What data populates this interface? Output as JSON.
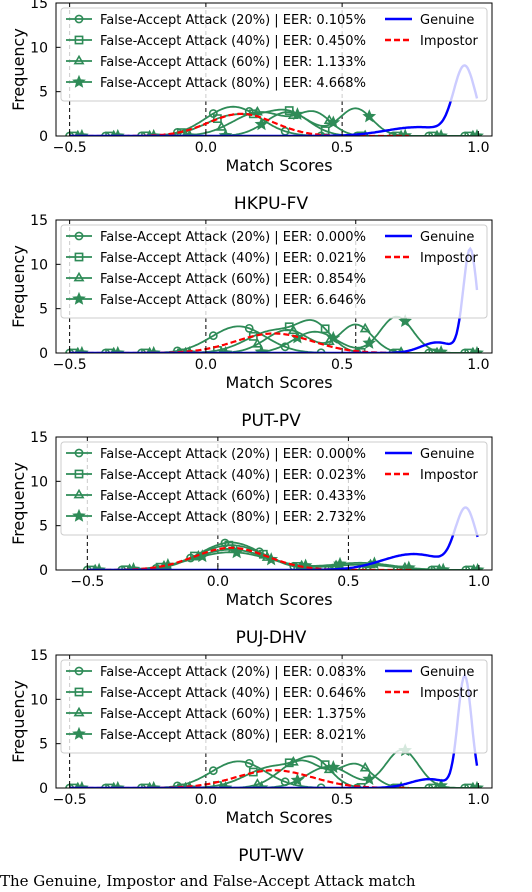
{
  "caption": "The Genuine, Impostor and False-Accept Attack match",
  "colors": {
    "attack": "#2e8b57",
    "genuine": "#0000ff",
    "impostor": "#ff0000"
  },
  "legend_labels": {
    "genuine": "Genuine",
    "impostor": "Impostor"
  },
  "chart_data": [
    {
      "type": "line",
      "title": "HKPU-FV",
      "xlabel": "Match Scores",
      "ylabel": "Frequency",
      "xlim": [
        -0.55,
        1.05
      ],
      "ylim": [
        0,
        15
      ],
      "xticks": [
        "-0.5",
        "0.0",
        "0.5",
        "1.0"
      ],
      "yticks": [
        "0",
        "5",
        "10",
        "15"
      ],
      "attack_series": [
        {
          "name": "False-Accept Attack (20%) | EER: 0.105%",
          "marker": "circle",
          "peaks": [
            [
              0.1,
              3.3,
              0.1
            ]
          ]
        },
        {
          "name": "False-Accept Attack (40%) | EER: 0.450%",
          "marker": "square",
          "peaks": [
            [
              0.1,
              2.3,
              0.1
            ],
            [
              0.3,
              2.6,
              0.08
            ]
          ]
        },
        {
          "name": "False-Accept Attack (60%) | EER: 1.133%",
          "marker": "triangle",
          "peaks": [
            [
              0.2,
              2.7,
              0.1
            ],
            [
              0.4,
              2.4,
              0.06
            ]
          ]
        },
        {
          "name": "False-Accept Attack (80%) | EER: 4.668%",
          "marker": "star",
          "peaks": [
            [
              0.3,
              2.7,
              0.08
            ],
            [
              0.55,
              3.1,
              0.06
            ]
          ]
        }
      ],
      "genuine": {
        "peaks": [
          [
            0.95,
            7.6,
            0.04
          ],
          [
            0.78,
            1.0,
            0.12
          ]
        ],
        "cut": 1.0
      },
      "impostor": {
        "peaks": [
          [
            0.13,
            2.5,
            0.12
          ]
        ]
      },
      "vlines": [
        -0.5,
        0.0,
        0.5
      ]
    },
    {
      "type": "line",
      "title": "PUT-PV",
      "xlabel": "Match Scores",
      "ylabel": "Frequency",
      "xlim": [
        -0.55,
        1.05
      ],
      "ylim": [
        0,
        15
      ],
      "xticks": [
        "-0.5",
        "0.0",
        "0.5",
        "1.0"
      ],
      "yticks": [
        "0",
        "5",
        "10",
        "15"
      ],
      "attack_series": [
        {
          "name": "False-Accept Attack (20%) | EER: 0.000%",
          "marker": "circle",
          "peaks": [
            [
              0.12,
              3.0,
              0.1
            ]
          ]
        },
        {
          "name": "False-Accept Attack (40%) | EER: 0.021%",
          "marker": "square",
          "peaks": [
            [
              0.25,
              2.5,
              0.1
            ],
            [
              0.4,
              2.8,
              0.06
            ]
          ]
        },
        {
          "name": "False-Accept Attack (60%) | EER: 0.854%",
          "marker": "triangle",
          "peaks": [
            [
              0.3,
              2.6,
              0.08
            ],
            [
              0.55,
              3.2,
              0.06
            ]
          ]
        },
        {
          "name": "False-Accept Attack (80%) | EER: 6.646%",
          "marker": "star",
          "peaks": [
            [
              0.4,
              2.4,
              0.08
            ],
            [
              0.7,
              4.1,
              0.06
            ]
          ]
        }
      ],
      "genuine": {
        "peaks": [
          [
            0.97,
            11.6,
            0.025
          ],
          [
            0.85,
            1.2,
            0.06
          ]
        ],
        "cut": 1.0
      },
      "impostor": {
        "peaks": [
          [
            0.25,
            2.2,
            0.14
          ]
        ]
      },
      "vlines": [
        -0.5,
        0.0,
        0.55
      ]
    },
    {
      "type": "line",
      "title": "PUJ-DHV",
      "xlabel": "Match Scores",
      "ylabel": "Frequency",
      "xlim": [
        -0.62,
        1.05
      ],
      "ylim": [
        0,
        15
      ],
      "xticks": [
        "-0.5",
        "0.0",
        "0.5",
        "1.0"
      ],
      "yticks": [
        "0",
        "5",
        "10",
        "15"
      ],
      "attack_series": [
        {
          "name": "False-Accept Attack (20%) | EER: 0.000%",
          "marker": "circle",
          "peaks": [
            [
              0.05,
              3.1,
              0.12
            ]
          ]
        },
        {
          "name": "False-Accept Attack (40%) | EER: 0.023%",
          "marker": "square",
          "peaks": [
            [
              0.05,
              2.8,
              0.13
            ]
          ]
        },
        {
          "name": "False-Accept Attack (60%) | EER: 0.433%",
          "marker": "triangle",
          "peaks": [
            [
              0.05,
              2.3,
              0.14
            ],
            [
              0.55,
              0.6,
              0.12
            ]
          ]
        },
        {
          "name": "False-Accept Attack (80%) | EER: 2.732%",
          "marker": "star",
          "peaks": [
            [
              0.05,
              2.0,
              0.15
            ],
            [
              0.55,
              0.8,
              0.12
            ]
          ]
        }
      ],
      "genuine": {
        "peaks": [
          [
            0.95,
            6.6,
            0.04
          ],
          [
            0.75,
            1.8,
            0.12
          ]
        ],
        "cut": 1.0
      },
      "impostor": {
        "peaks": [
          [
            0.05,
            2.5,
            0.14
          ]
        ]
      },
      "vlines": [
        -0.5,
        0.0,
        0.5
      ]
    },
    {
      "type": "line",
      "title": "PUT-WV",
      "xlabel": "Match Scores",
      "ylabel": "Frequency",
      "xlim": [
        -0.55,
        1.05
      ],
      "ylim": [
        0,
        15
      ],
      "xticks": [
        "-0.5",
        "0.0",
        "0.5",
        "1.0"
      ],
      "yticks": [
        "0",
        "5",
        "10",
        "15"
      ],
      "attack_series": [
        {
          "name": "False-Accept Attack (20%) | EER: 0.083%",
          "marker": "circle",
          "peaks": [
            [
              0.12,
              3.0,
              0.1
            ]
          ]
        },
        {
          "name": "False-Accept Attack (40%) | EER: 0.646%",
          "marker": "square",
          "peaks": [
            [
              0.25,
              2.4,
              0.1
            ],
            [
              0.4,
              2.7,
              0.06
            ]
          ]
        },
        {
          "name": "False-Accept Attack (60%) | EER: 1.375%",
          "marker": "triangle",
          "peaks": [
            [
              0.35,
              3.1,
              0.08
            ],
            [
              0.55,
              2.6,
              0.06
            ]
          ]
        },
        {
          "name": "False-Accept Attack (80%) | EER: 8.021%",
          "marker": "star",
          "peaks": [
            [
              0.45,
              2.4,
              0.08
            ],
            [
              0.72,
              4.3,
              0.06
            ]
          ]
        }
      ],
      "genuine": {
        "peaks": [
          [
            0.95,
            12.5,
            0.025
          ],
          [
            0.82,
            1.0,
            0.07
          ]
        ],
        "cut": 1.0
      },
      "impostor": {
        "peaks": [
          [
            0.25,
            2.0,
            0.14
          ]
        ]
      },
      "vlines": [
        -0.5,
        0.0,
        0.5
      ]
    }
  ]
}
